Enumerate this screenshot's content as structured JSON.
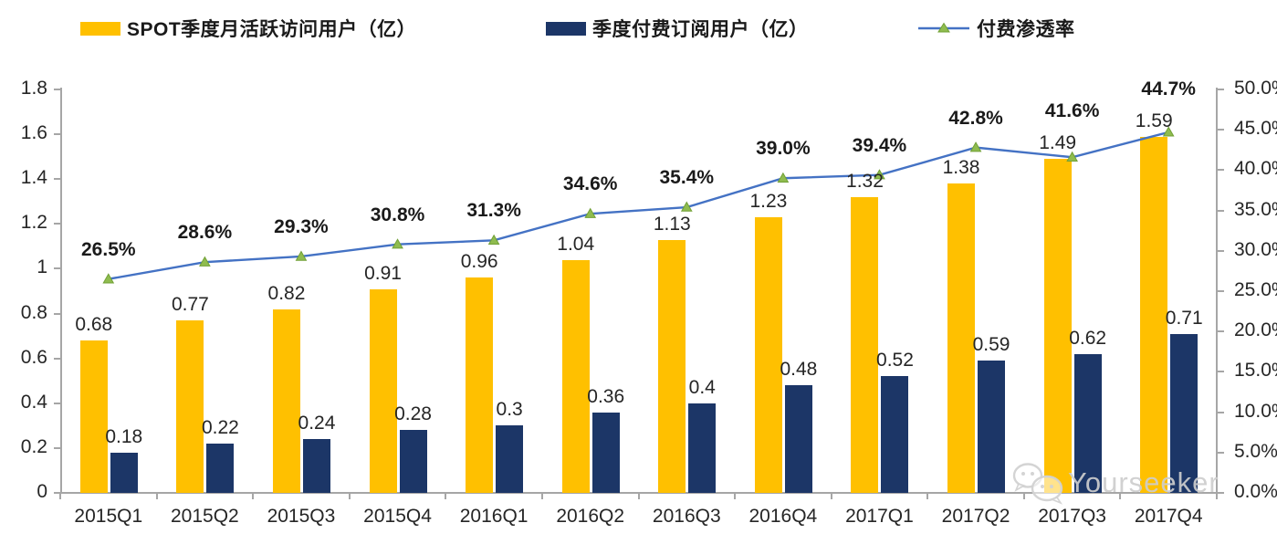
{
  "legend": [
    {
      "label": "SPOT季度月活跃访问用户（亿）",
      "swatch": "bar",
      "color": "#FFC000"
    },
    {
      "label": "季度付费订阅用户（亿）",
      "swatch": "bar",
      "color": "#1C3667"
    },
    {
      "label": "付费渗透率",
      "swatch": "line-triangle",
      "color": "#4472C4",
      "marker_color": "#8FBC4F"
    }
  ],
  "watermark": {
    "text": "Yourseeker",
    "icon": "wechat-icon",
    "color": "#CDCDCD"
  },
  "colors": {
    "axis": "#A6A6A6",
    "text": "#262626",
    "line": "#4472C4",
    "marker_fill": "#8FBC4F",
    "marker_stroke": "#71A036"
  },
  "chart_data": {
    "type": "combo",
    "subtype": [
      "bar",
      "bar",
      "line"
    ],
    "categories": [
      "2015Q1",
      "2015Q2",
      "2015Q3",
      "2015Q4",
      "2016Q1",
      "2016Q2",
      "2016Q3",
      "2016Q4",
      "2017Q1",
      "2017Q2",
      "2017Q3",
      "2017Q4"
    ],
    "series": [
      {
        "name": "SPOT季度月活跃访问用户（亿）",
        "type": "bar",
        "axis": "left",
        "color": "#FFC000",
        "values": [
          0.68,
          0.77,
          0.82,
          0.91,
          0.96,
          1.04,
          1.13,
          1.23,
          1.32,
          1.38,
          1.49,
          1.59
        ],
        "labels": [
          "0.68",
          "0.77",
          "0.82",
          "0.91",
          "0.96",
          "1.04",
          "1.13",
          "1.23",
          "1.32",
          "1.38",
          "1.49",
          "1.59"
        ]
      },
      {
        "name": "季度付费订阅用户（亿）",
        "type": "bar",
        "axis": "left",
        "color": "#1C3667",
        "values": [
          0.18,
          0.22,
          0.24,
          0.28,
          0.3,
          0.36,
          0.4,
          0.48,
          0.52,
          0.59,
          0.62,
          0.71
        ],
        "labels": [
          "0.18",
          "0.22",
          "0.24",
          "0.28",
          "0.3",
          "0.36",
          "0.4",
          "0.48",
          "0.52",
          "0.59",
          "0.62",
          "0.71"
        ]
      },
      {
        "name": "付费渗透率",
        "type": "line",
        "axis": "right",
        "color": "#4472C4",
        "marker": "triangle",
        "marker_color": "#8FBC4F",
        "values": [
          26.5,
          28.6,
          29.3,
          30.8,
          31.3,
          34.6,
          35.4,
          39.0,
          39.4,
          42.8,
          41.6,
          44.7
        ],
        "labels": [
          "26.5%",
          "28.6%",
          "29.3%",
          "30.8%",
          "31.3%",
          "34.6%",
          "35.4%",
          "39.0%",
          "39.4%",
          "42.8%",
          "41.6%",
          "44.7%"
        ]
      }
    ],
    "left_axis": {
      "min": 0,
      "max": 1.8,
      "ticks": [
        "0",
        "0.2",
        "0.4",
        "0.6",
        "0.8",
        "1",
        "1.2",
        "1.4",
        "1.6",
        "1.8"
      ]
    },
    "right_axis": {
      "min": 0,
      "max": 50,
      "ticks": [
        "0.0%",
        "5.0%",
        "10.0%",
        "15.0%",
        "20.0%",
        "25.0%",
        "30.0%",
        "35.0%",
        "40.0%",
        "45.0%",
        "50.0%"
      ]
    },
    "grid": false,
    "legend_position": "top",
    "title": ""
  }
}
